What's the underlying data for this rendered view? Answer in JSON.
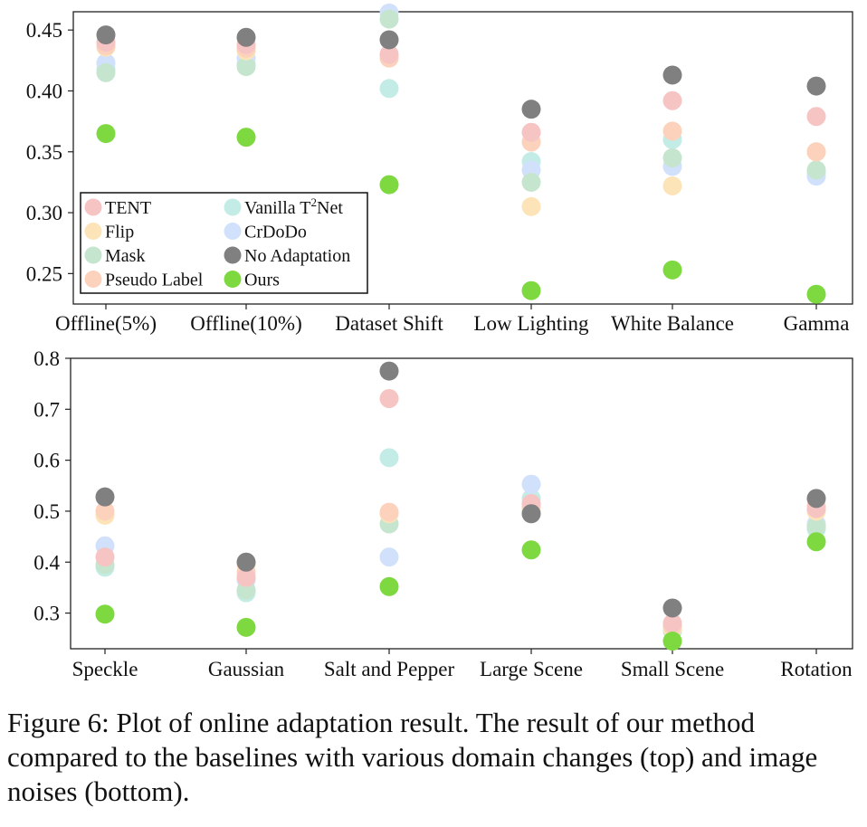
{
  "colors": {
    "TENT": "#f7c4c4",
    "Flip": "#fde4b8",
    "Mask": "#c5e5cf",
    "Pseudo Label": "#fcd2bc",
    "Vanilla T2Net": "#c4ece7",
    "CrDoDo": "#d2e1fb",
    "No Adaptation": "#808080",
    "Ours": "#7ed940"
  },
  "legend": {
    "items": [
      {
        "key": "TENT",
        "label": "TENT"
      },
      {
        "key": "Flip",
        "label": "Flip"
      },
      {
        "key": "Mask",
        "label": "Mask"
      },
      {
        "key": "Pseudo Label",
        "label": "Pseudo Label"
      },
      {
        "key": "Vanilla T2Net",
        "label_main": "Vanilla T",
        "label_sup": "2",
        "label_tail": "Net"
      },
      {
        "key": "CrDoDo",
        "label": "CrDoDo"
      },
      {
        "key": "No Adaptation",
        "label": "No Adaptation"
      },
      {
        "key": "Ours",
        "label": "Ours"
      }
    ]
  },
  "chart_data": [
    {
      "type": "scatter",
      "categories": [
        "Offline(5%)",
        "Offline(10%)",
        "Dataset Shift",
        "Low Lighting",
        "White Balance",
        "Gamma"
      ],
      "ylim": [
        0.225,
        0.465
      ],
      "yticks": [
        "0.25",
        "0.30",
        "0.35",
        "0.40",
        "0.45"
      ],
      "ytick_values": [
        0.25,
        0.3,
        0.35,
        0.4,
        0.45
      ],
      "legend_position": "lower-left",
      "series": [
        {
          "name": "TENT",
          "values": [
            0.44,
            0.438,
            0.43,
            0.366,
            0.392,
            0.379
          ]
        },
        {
          "name": "Flip",
          "values": [
            0.436,
            0.433,
            0.428,
            0.305,
            0.322,
            0.35
          ]
        },
        {
          "name": "Mask",
          "values": [
            0.415,
            0.42,
            0.459,
            0.325,
            0.345,
            0.335
          ]
        },
        {
          "name": "Pseudo Label",
          "values": [
            0.437,
            0.435,
            0.427,
            0.358,
            0.367,
            0.35
          ]
        },
        {
          "name": "Vanilla T2Net",
          "values": [
            0.418,
            0.422,
            0.402,
            0.342,
            0.36,
            0.333
          ]
        },
        {
          "name": "CrDoDo",
          "values": [
            0.423,
            0.427,
            0.464,
            0.335,
            0.338,
            0.33
          ]
        },
        {
          "name": "No Adaptation",
          "values": [
            0.446,
            0.444,
            0.442,
            0.385,
            0.413,
            0.404
          ]
        },
        {
          "name": "Ours",
          "values": [
            0.365,
            0.362,
            0.323,
            0.236,
            0.253,
            0.233
          ]
        }
      ]
    },
    {
      "type": "scatter",
      "categories": [
        "Speckle",
        "Gaussian",
        "Salt and Pepper",
        "Large Scene",
        "Small Scene",
        "Rotation"
      ],
      "ylim": [
        0.23,
        0.8
      ],
      "yticks": [
        "0.3",
        "0.4",
        "0.5",
        "0.6",
        "0.7",
        "0.8"
      ],
      "ytick_values": [
        0.3,
        0.4,
        0.5,
        0.6,
        0.7,
        0.8
      ],
      "series": [
        {
          "name": "TENT",
          "values": [
            0.41,
            0.37,
            0.721,
            0.515,
            0.28,
            0.505
          ]
        },
        {
          "name": "Flip",
          "values": [
            0.492,
            0.395,
            0.495,
            0.505,
            0.27,
            0.5
          ]
        },
        {
          "name": "Mask",
          "values": [
            0.395,
            0.345,
            0.475,
            0.5,
            0.265,
            0.47
          ]
        },
        {
          "name": "Pseudo Label",
          "values": [
            0.5,
            0.38,
            0.498,
            0.51,
            0.275,
            0.51
          ]
        },
        {
          "name": "Vanilla T2Net",
          "values": [
            0.39,
            0.34,
            0.605,
            0.525,
            0.268,
            0.465
          ]
        },
        {
          "name": "CrDoDo",
          "values": [
            0.432,
            0.365,
            0.41,
            0.553,
            0.272,
            0.475
          ]
        },
        {
          "name": "No Adaptation",
          "values": [
            0.528,
            0.4,
            0.775,
            0.495,
            0.31,
            0.525
          ]
        },
        {
          "name": "Ours",
          "values": [
            0.298,
            0.272,
            0.352,
            0.424,
            0.245,
            0.44
          ]
        }
      ]
    }
  ],
  "caption": "Figure 6: Plot of online adaptation result. The result of our method compared to the baselines with various domain changes (top) and image noises (bottom)."
}
